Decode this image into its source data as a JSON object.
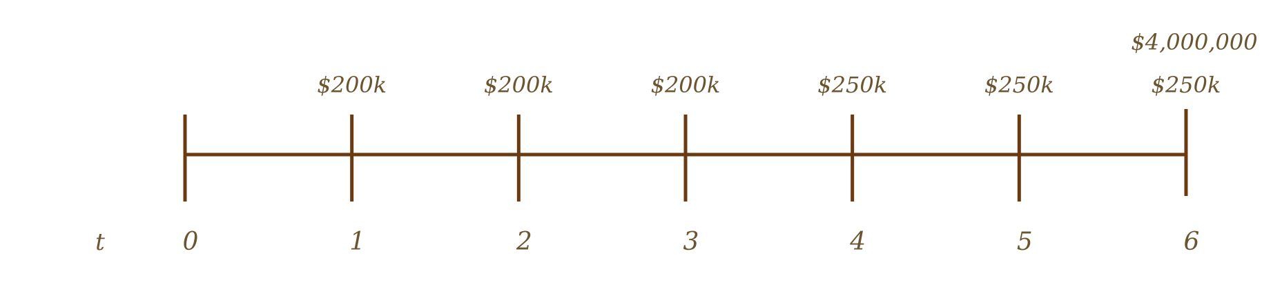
{
  "timeline": {
    "axis_label": "t",
    "colors": {
      "line": "#6b3a10",
      "text": "#6b5530"
    },
    "periods": [
      {
        "label": "0",
        "cash_flows": []
      },
      {
        "label": "1",
        "cash_flows": [
          "$200k"
        ]
      },
      {
        "label": "2",
        "cash_flows": [
          "$200k"
        ]
      },
      {
        "label": "3",
        "cash_flows": [
          "$200k"
        ]
      },
      {
        "label": "4",
        "cash_flows": [
          "$250k"
        ]
      },
      {
        "label": "5",
        "cash_flows": [
          "$250k"
        ]
      },
      {
        "label": "6",
        "cash_flows": [
          "$250k",
          "$4,000,000"
        ]
      }
    ]
  }
}
